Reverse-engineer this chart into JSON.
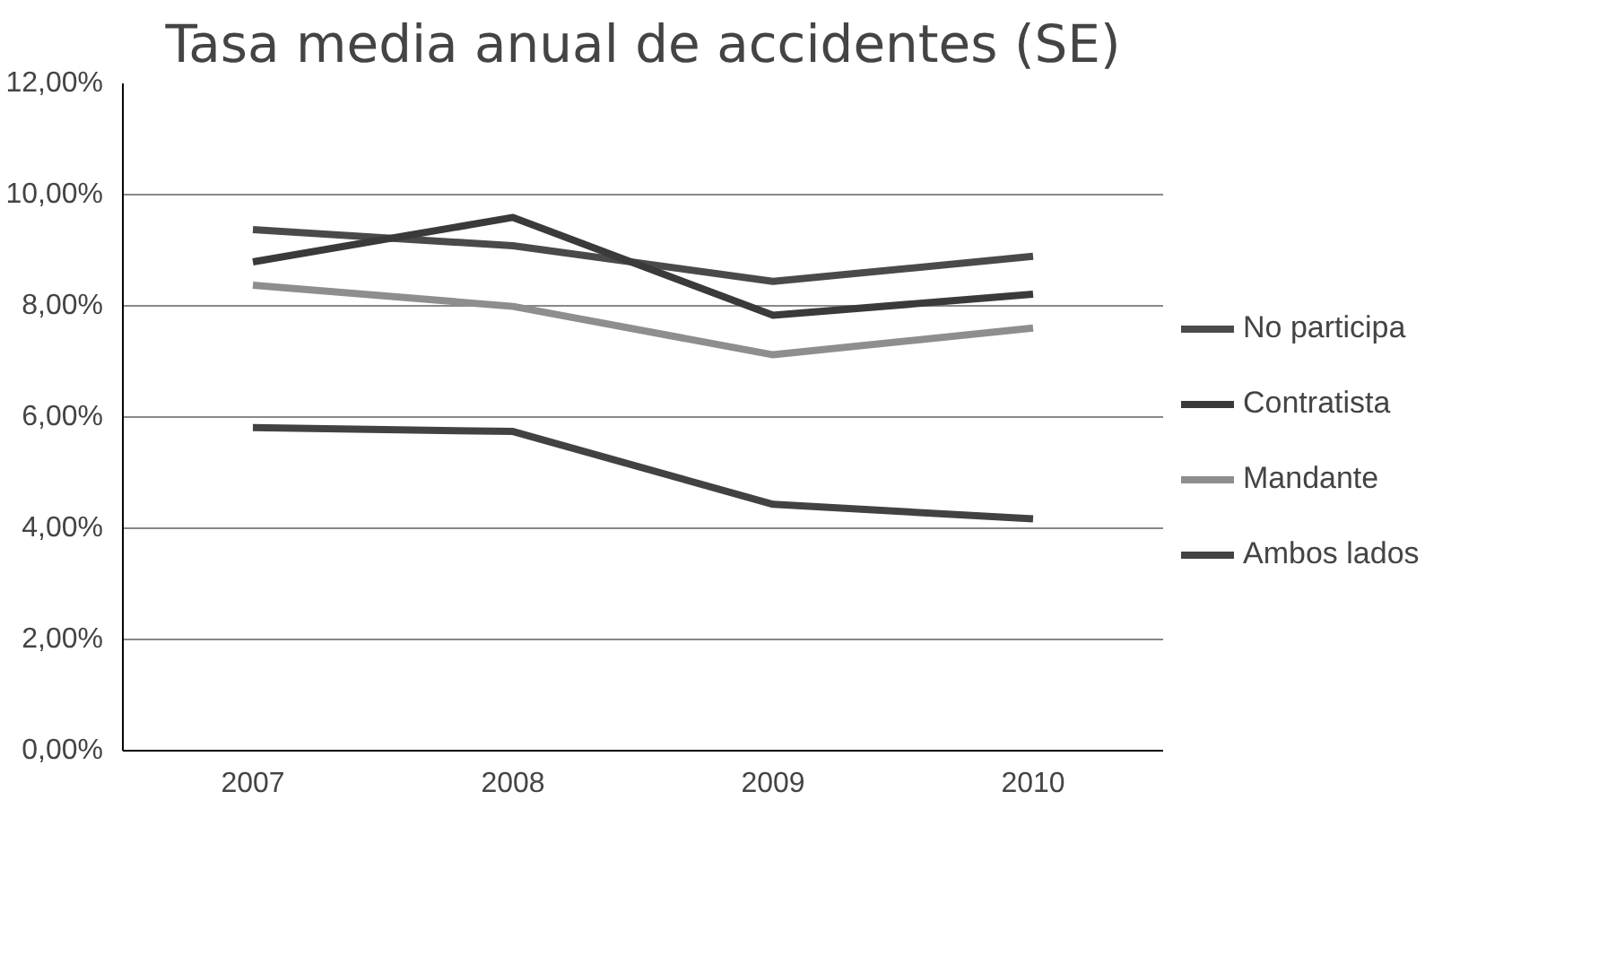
{
  "chart_data": {
    "type": "line",
    "title": "Tasa media anual de accidentes (SE)",
    "categories": [
      "2007",
      "2008",
      "2009",
      "2010"
    ],
    "series": [
      {
        "name": "No participa",
        "color": "#4a4a4a",
        "values": [
          9.37,
          9.08,
          8.44,
          8.89
        ]
      },
      {
        "name": "Contratista",
        "color": "#3a3a3a",
        "values": [
          8.79,
          9.59,
          7.83,
          8.21
        ]
      },
      {
        "name": "Mandante",
        "color": "#8e8e8e",
        "values": [
          8.37,
          7.99,
          7.12,
          7.6
        ]
      },
      {
        "name": "Ambos lados",
        "color": "#424242",
        "values": [
          5.81,
          5.74,
          4.43,
          4.17
        ]
      }
    ],
    "ylim": [
      0,
      12
    ],
    "yticks": [
      {
        "value": 0,
        "label": "0,00%"
      },
      {
        "value": 2,
        "label": "2,00%"
      },
      {
        "value": 4,
        "label": "4,00%"
      },
      {
        "value": 6,
        "label": "6,00%"
      },
      {
        "value": 8,
        "label": "8,00%"
      },
      {
        "value": 10,
        "label": "10,00%"
      },
      {
        "value": 12,
        "label": "12,00%"
      }
    ],
    "grid": "y",
    "legend": "right",
    "marker": "none",
    "line_style": "solid"
  }
}
